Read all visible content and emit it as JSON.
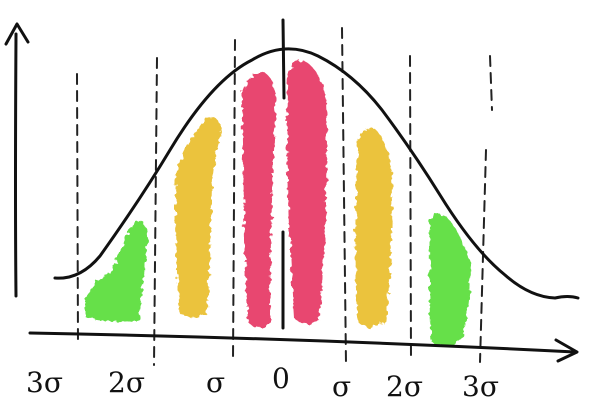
{
  "figure": {
    "tick_labels": [
      "3σ",
      "2σ",
      "σ",
      "0",
      "σ",
      "2σ",
      "3σ"
    ]
  },
  "bands": [
    {
      "name": "band-left-3-2-sigma",
      "color": "#66e04a"
    },
    {
      "name": "band-left-2-1-sigma",
      "color": "#ebc33e"
    },
    {
      "name": "band-left-1-0-sigma",
      "color": "#e8476f"
    },
    {
      "name": "band-right-0-1-sigma",
      "color": "#e8476f"
    },
    {
      "name": "band-right-1-2-sigma",
      "color": "#ebc33e"
    },
    {
      "name": "band-right-2-3-sigma",
      "color": "#66e04a"
    }
  ]
}
